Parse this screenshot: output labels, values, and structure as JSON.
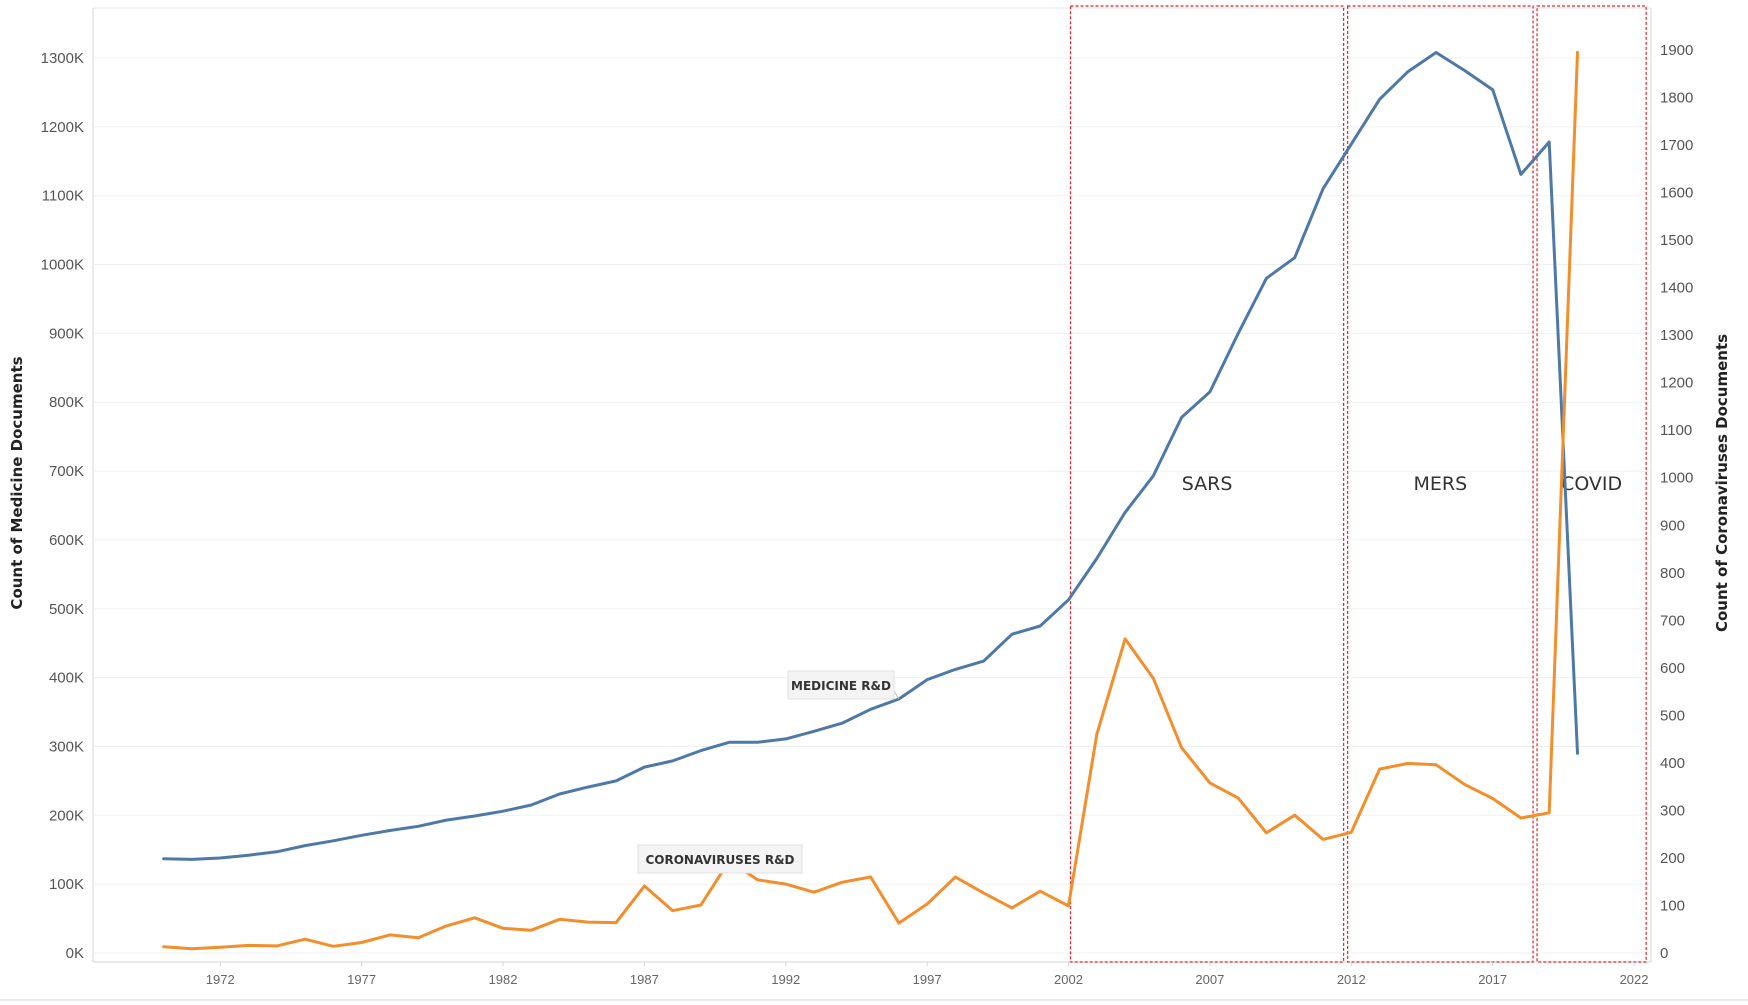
{
  "chart_data": {
    "type": "line",
    "x": [
      1970,
      1971,
      1972,
      1973,
      1974,
      1975,
      1976,
      1977,
      1978,
      1979,
      1980,
      1981,
      1982,
      1983,
      1984,
      1985,
      1986,
      1987,
      1988,
      1989,
      1990,
      1991,
      1992,
      1993,
      1994,
      1995,
      1996,
      1997,
      1998,
      1999,
      2000,
      2001,
      2002,
      2003,
      2004,
      2005,
      2006,
      2007,
      2008,
      2009,
      2010,
      2011,
      2012,
      2013,
      2014,
      2015,
      2016,
      2017,
      2018,
      2019,
      2020
    ],
    "x_ticks": [
      "1972",
      "1977",
      "1982",
      "1987",
      "1992",
      "1997",
      "2002",
      "2007",
      "2012",
      "2017",
      "2022"
    ],
    "xlim": [
      1967.5,
      2022.6
    ],
    "y_left": {
      "label": "Count of Medicine Documents",
      "lim": [
        0,
        1300000
      ],
      "ticks": [
        0,
        100000,
        200000,
        300000,
        400000,
        500000,
        600000,
        700000,
        800000,
        900000,
        1000000,
        1100000,
        1200000,
        1300000
      ],
      "tick_labels": [
        "0K",
        "100K",
        "200K",
        "300K",
        "400K",
        "500K",
        "600K",
        "700K",
        "800K",
        "900K",
        "1000K",
        "1100K",
        "1200K",
        "1300K"
      ]
    },
    "y_right": {
      "label": "Count of Coronaviruses Documents",
      "lim": [
        0,
        1900
      ],
      "ticks": [
        0,
        100,
        200,
        300,
        400,
        500,
        600,
        700,
        800,
        900,
        1000,
        1100,
        1200,
        1300,
        1400,
        1500,
        1600,
        1700,
        1800,
        1900
      ],
      "tick_labels": [
        "0",
        "100",
        "200",
        "300",
        "400",
        "500",
        "600",
        "700",
        "800",
        "900",
        "1000",
        "1100",
        "1200",
        "1300",
        "1400",
        "1500",
        "1600",
        "1700",
        "1800",
        "1900"
      ]
    },
    "series": [
      {
        "name": "MEDICINE R&D",
        "axis": "left",
        "color": "#4e79a7",
        "values": [
          137000,
          136000,
          138000,
          142000,
          147000,
          156000,
          163000,
          171000,
          178000,
          184000,
          193000,
          199000,
          206000,
          215000,
          231000,
          241000,
          250000,
          270000,
          279000,
          294000,
          306000,
          306000,
          311000,
          322000,
          334000,
          354000,
          369000,
          397000,
          412000,
          424000,
          463000,
          475000,
          513000,
          573000,
          640000,
          693000,
          778000,
          815000,
          900000,
          980000,
          1010000,
          1110000,
          1175000,
          1240000,
          1280000,
          1308000,
          1282000,
          1254000,
          1131000,
          1178000,
          290000
        ]
      },
      {
        "name": "CORONAVIRUSES R&D",
        "axis": "right",
        "color": "#f28e2b",
        "values": [
          13,
          9,
          12,
          16,
          15,
          29,
          14,
          22,
          38,
          32,
          57,
          74,
          52,
          48,
          71,
          65,
          64,
          141,
          89,
          101,
          194,
          154,
          145,
          128,
          149,
          160,
          63,
          103,
          160,
          126,
          95,
          130,
          99,
          460,
          661,
          578,
          432,
          358,
          326,
          253,
          290,
          239,
          254,
          387,
          399,
          396,
          355,
          325,
          284,
          295,
          1895
        ]
      }
    ],
    "annotations": [
      {
        "text": "SARS",
        "x_range": [
          2002,
          2011.8
        ]
      },
      {
        "text": "MERS",
        "x_range": [
          2011.8,
          2018.5
        ]
      },
      {
        "text": "COVID",
        "x_range": [
          2018.5,
          2022.5
        ]
      }
    ],
    "callouts": [
      {
        "text": "MEDICINE R&D",
        "series": "MEDICINE R&D",
        "anchor_year": 1996
      },
      {
        "text": "CORONAVIRUSES R&D",
        "series": "CORONAVIRUSES R&D",
        "anchor_year": 1990
      }
    ],
    "grid": true
  }
}
